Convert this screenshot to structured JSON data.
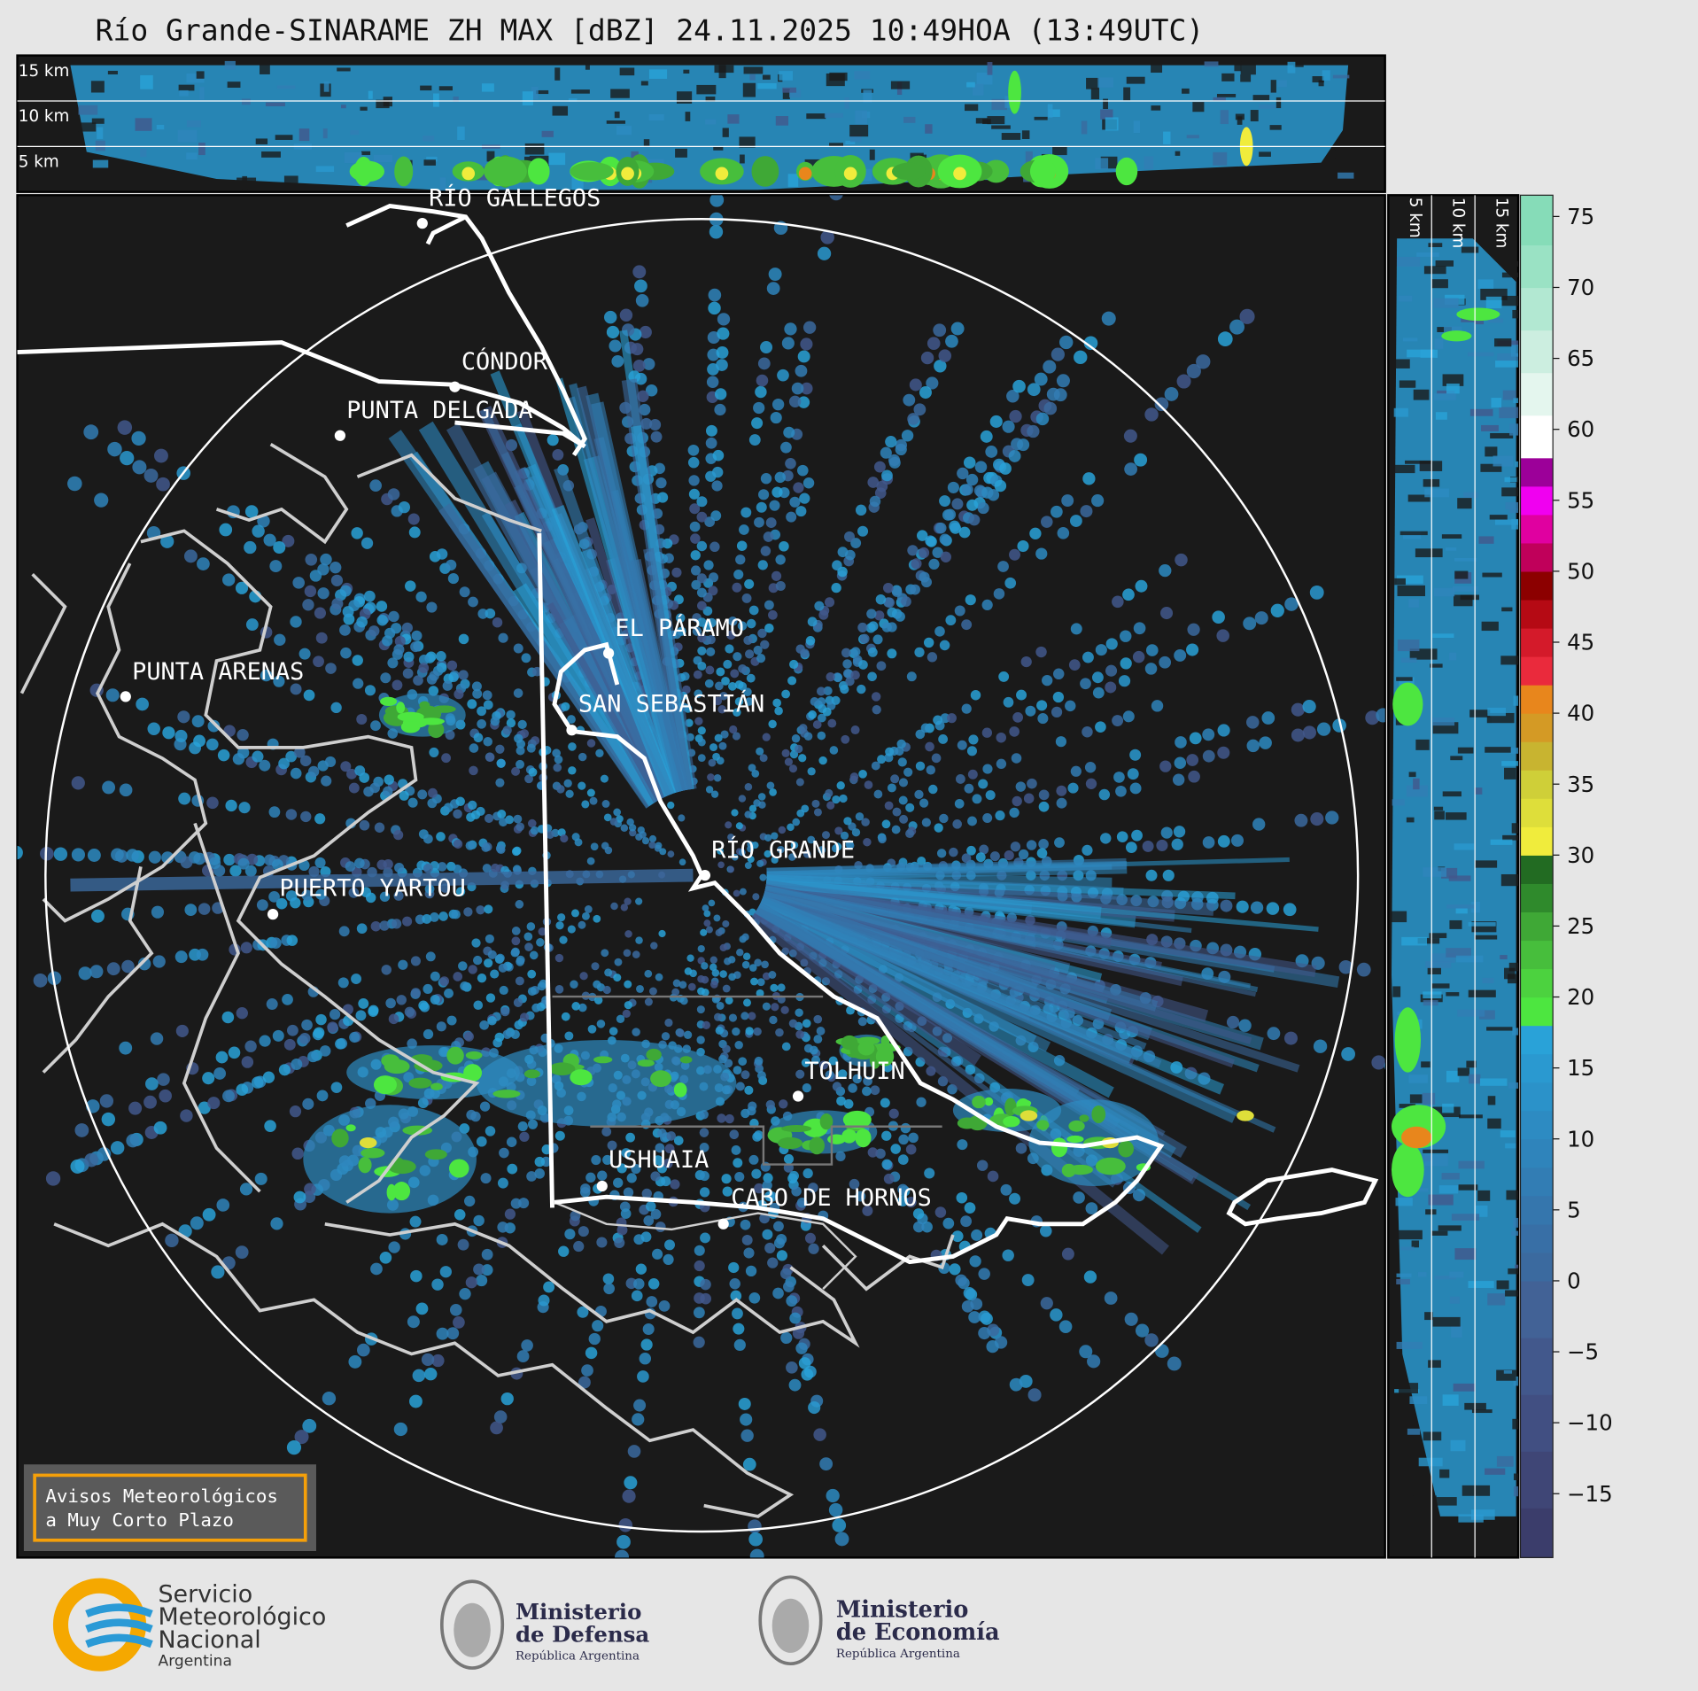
{
  "header": {
    "title": "Río Grande-SINARAME ZH MAX [dBZ] 24.11.2025 10:49HOA (13:49UTC)"
  },
  "top_section": {
    "height_labels": [
      "15 km",
      "10 km",
      "5 km"
    ]
  },
  "side_section": {
    "height_labels": [
      "5 km",
      "10 km",
      "15 km"
    ]
  },
  "map": {
    "places": [
      "RÍO GALLEGOS",
      "CÓNDOR",
      "PUNTA DELGADA",
      "EL PÁRAMO",
      "PUNTA ARENAS",
      "SAN SEBASTIÁN",
      "RÍO GRANDE",
      "PUERTO YARTOU",
      "TOLHUIN",
      "USHUAIA",
      "CABO DE HORNOS"
    ]
  },
  "colorbar": {
    "lim": [
      -19.5,
      76.5
    ],
    "bounds": [
      -19.5,
      -16,
      -12,
      -8,
      -4,
      0,
      2,
      4,
      6,
      8,
      10,
      12,
      14,
      16,
      18,
      20,
      22,
      24,
      26,
      28,
      30,
      32,
      34,
      36,
      38,
      40,
      42,
      44,
      46,
      48,
      50,
      52,
      54,
      56,
      58,
      61,
      64,
      67,
      70,
      73,
      76.5
    ],
    "colors": [
      "#3b3d6b",
      "#3f4676",
      "#414f82",
      "#42588c",
      "#426296",
      "#3b6a9f",
      "#386fa6",
      "#3576ad",
      "#327db4",
      "#2f84bb",
      "#2d8bc2",
      "#2b92c9",
      "#2a99d0",
      "#29a2d8",
      "#4de640",
      "#4cd23f",
      "#47be3c",
      "#3fa836",
      "#2f8a2c",
      "#226b22",
      "#f0ec3c",
      "#dede3a",
      "#cfcf38",
      "#c8b430",
      "#d49a25",
      "#e8861c",
      "#ea2a3c",
      "#d41a2a",
      "#b50a14",
      "#8c0000",
      "#c0005a",
      "#e000a0",
      "#f000f0",
      "#9c0099",
      "#ffffff",
      "#e4f6ee",
      "#cceee0",
      "#b2e8d2",
      "#9ae2c4",
      "#86dcb8"
    ],
    "ticks": [
      {
        "value": -15,
        "label": "−15"
      },
      {
        "value": -10,
        "label": "−10"
      },
      {
        "value": -5,
        "label": "−5"
      },
      0,
      5,
      10,
      15,
      20,
      25,
      30,
      35,
      40,
      45,
      50,
      55,
      60,
      65,
      70,
      75
    ]
  },
  "warning_box": {
    "lines": [
      "Avisos Meteorológicos",
      "a Muy Corto Plazo"
    ]
  },
  "footer": {
    "smn": {
      "lines": [
        "Servicio",
        "Meteorológico",
        "Nacional"
      ],
      "country": "Argentina"
    },
    "defensa": {
      "lines": [
        "Ministerio",
        "de Defensa"
      ],
      "country": "República Argentina"
    },
    "economia": {
      "lines": [
        "Ministerio",
        "de Economía"
      ],
      "country": "República Argentina"
    }
  }
}
